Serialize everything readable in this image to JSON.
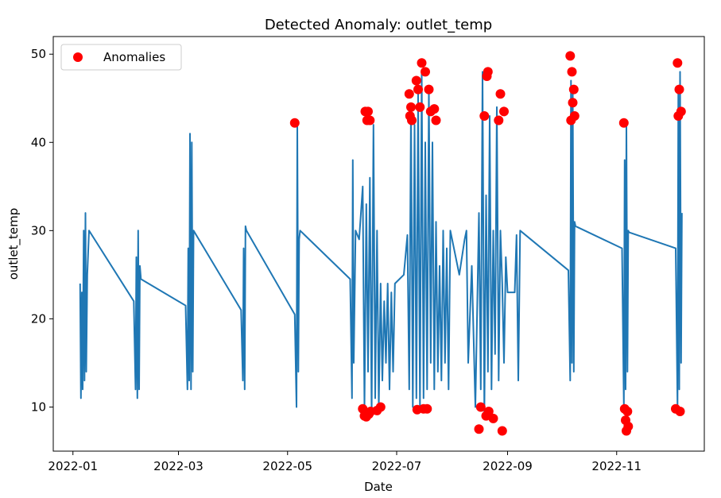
{
  "chart_data": {
    "type": "line",
    "title": "Detected Anomaly: outlet_temp",
    "xlabel": "Date",
    "ylabel": "outlet_temp",
    "x_scale": "date",
    "xlim": [
      "2021-12-21",
      "2022-12-20"
    ],
    "ylim": [
      5,
      52
    ],
    "x_ticks": [
      "2022-01",
      "2022-03",
      "2022-05",
      "2022-07",
      "2022-09",
      "2022-11"
    ],
    "x_tick_dates": [
      "2022-01-01",
      "2022-03-01",
      "2022-05-01",
      "2022-07-01",
      "2022-09-01",
      "2022-11-01"
    ],
    "y_ticks": [
      10,
      20,
      30,
      40,
      50
    ],
    "grid": false,
    "legend": {
      "position": "top-left",
      "entries": [
        "Anomalies"
      ]
    },
    "colors": {
      "line": "#1f77b4",
      "anomaly": "#ff0000"
    },
    "series": [
      {
        "type": "line",
        "x": [
          "2022-01-05",
          "2022-01-05",
          "2022-01-06",
          "2022-01-06",
          "2022-01-07",
          "2022-01-07",
          "2022-01-08",
          "2022-01-08",
          "2022-01-09",
          "2022-01-10",
          "2022-02-04",
          "2022-02-05",
          "2022-02-05",
          "2022-02-06",
          "2022-02-06",
          "2022-02-07",
          "2022-02-07",
          "2022-02-08",
          "2022-03-05",
          "2022-03-06",
          "2022-03-06",
          "2022-03-07",
          "2022-03-07",
          "2022-03-08",
          "2022-03-08",
          "2022-03-09",
          "2022-03-09",
          "2022-04-05",
          "2022-04-06",
          "2022-04-06",
          "2022-04-07",
          "2022-04-07",
          "2022-04-08",
          "2022-05-05",
          "2022-05-06",
          "2022-05-06",
          "2022-05-07",
          "2022-05-07",
          "2022-05-08",
          "2022-06-05",
          "2022-06-06",
          "2022-06-06",
          "2022-06-07",
          "2022-06-08",
          "2022-06-10",
          "2022-06-12",
          "2022-06-13",
          "2022-06-14",
          "2022-06-15",
          "2022-06-16",
          "2022-06-17",
          "2022-06-18",
          "2022-06-19",
          "2022-06-20",
          "2022-06-21",
          "2022-06-22",
          "2022-06-23",
          "2022-06-24",
          "2022-06-25",
          "2022-06-26",
          "2022-06-27",
          "2022-06-28",
          "2022-06-29",
          "2022-06-30",
          "2022-07-05",
          "2022-07-07",
          "2022-07-08",
          "2022-07-09",
          "2022-07-10",
          "2022-07-11",
          "2022-07-12",
          "2022-07-13",
          "2022-07-14",
          "2022-07-15",
          "2022-07-16",
          "2022-07-17",
          "2022-07-18",
          "2022-07-19",
          "2022-07-20",
          "2022-07-21",
          "2022-07-22",
          "2022-07-23",
          "2022-07-24",
          "2022-07-25",
          "2022-07-26",
          "2022-07-27",
          "2022-07-28",
          "2022-07-29",
          "2022-07-30",
          "2022-07-31",
          "2022-08-05",
          "2022-08-08",
          "2022-08-09",
          "2022-08-10",
          "2022-08-12",
          "2022-08-14",
          "2022-08-16",
          "2022-08-17",
          "2022-08-18",
          "2022-08-19",
          "2022-08-20",
          "2022-08-21",
          "2022-08-22",
          "2022-08-23",
          "2022-08-24",
          "2022-08-25",
          "2022-08-26",
          "2022-08-27",
          "2022-08-28",
          "2022-08-29",
          "2022-08-30",
          "2022-08-31",
          "2022-09-01",
          "2022-09-05",
          "2022-09-06",
          "2022-09-07",
          "2022-09-08",
          "2022-10-05",
          "2022-10-06",
          "2022-10-06",
          "2022-10-07",
          "2022-10-07",
          "2022-10-08",
          "2022-10-08",
          "2022-10-09",
          "2022-11-04",
          "2022-11-05",
          "2022-11-05",
          "2022-11-06",
          "2022-11-06",
          "2022-11-07",
          "2022-11-07",
          "2022-11-08",
          "2022-12-04",
          "2022-12-05",
          "2022-12-05",
          "2022-12-06",
          "2022-12-06",
          "2022-12-07",
          "2022-12-07"
        ],
        "y": [
          24,
          11,
          23,
          12,
          30,
          13,
          32,
          14,
          25,
          30,
          22,
          12,
          27,
          11,
          30,
          12,
          26,
          24.5,
          21.5,
          12,
          28,
          13,
          41,
          12,
          40,
          14,
          30,
          21,
          13,
          28,
          12,
          30.5,
          30,
          20.5,
          10,
          42,
          14,
          29,
          30,
          24.5,
          11,
          38,
          15,
          30,
          29,
          35,
          10,
          33,
          14,
          36,
          9,
          42,
          11,
          30,
          10,
          24,
          13,
          22,
          15,
          24,
          12,
          23,
          14,
          24,
          25,
          29.5,
          12,
          44,
          10,
          42,
          11,
          46,
          10,
          48,
          11,
          40,
          12,
          46,
          15,
          40,
          12,
          31,
          14,
          26,
          13,
          30,
          15,
          28,
          12,
          30,
          25,
          29,
          30,
          15,
          26,
          10,
          32,
          12,
          48,
          9,
          34,
          14,
          43,
          12,
          30,
          16,
          44,
          13,
          30,
          24,
          15,
          27,
          23,
          23,
          29.5,
          13,
          30,
          25.5,
          13,
          47,
          15,
          46,
          14,
          31,
          30.5,
          28,
          10,
          38,
          12,
          42,
          14,
          30,
          29.8,
          28,
          10,
          46,
          12,
          48,
          15,
          32
        ]
      },
      {
        "type": "scatter",
        "name": "Anomalies",
        "x": [
          "2022-05-05",
          "2022-06-12",
          "2022-06-13",
          "2022-06-13",
          "2022-06-14",
          "2022-06-14",
          "2022-06-15",
          "2022-06-15",
          "2022-06-16",
          "2022-06-16",
          "2022-06-20",
          "2022-06-22",
          "2022-07-08",
          "2022-07-08",
          "2022-07-09",
          "2022-07-09",
          "2022-07-12",
          "2022-07-12",
          "2022-07-13",
          "2022-07-14",
          "2022-07-15",
          "2022-07-16",
          "2022-07-17",
          "2022-07-18",
          "2022-07-19",
          "2022-07-20",
          "2022-07-22",
          "2022-07-23",
          "2022-08-16",
          "2022-08-17",
          "2022-08-19",
          "2022-08-20",
          "2022-08-20",
          "2022-08-21",
          "2022-08-21",
          "2022-08-24",
          "2022-08-27",
          "2022-08-28",
          "2022-08-29",
          "2022-08-30",
          "2022-10-06",
          "2022-10-06",
          "2022-10-07",
          "2022-10-07",
          "2022-10-08",
          "2022-10-08",
          "2022-11-05",
          "2022-11-05",
          "2022-11-06",
          "2022-11-06",
          "2022-11-07",
          "2022-11-07",
          "2022-12-04",
          "2022-12-05",
          "2022-12-05",
          "2022-12-06",
          "2022-12-06",
          "2022-12-07"
        ],
        "y": [
          42.2,
          9.8,
          9,
          43.5,
          8.9,
          42.5,
          43.5,
          9.2,
          42.5,
          9.5,
          9.6,
          10,
          45.5,
          43,
          44,
          42.5,
          47,
          9.7,
          46,
          44,
          49,
          9.8,
          48,
          9.8,
          46,
          43.5,
          43.8,
          42.5,
          7.5,
          10,
          43,
          9,
          47.5,
          48,
          9.5,
          8.7,
          42.5,
          45.5,
          7.3,
          43.5,
          49.8,
          42.5,
          48,
          44.5,
          46,
          43,
          42.2,
          9.8,
          8.5,
          7.3,
          9.5,
          7.8,
          9.8,
          49,
          43,
          46,
          9.5,
          43.5
        ]
      }
    ]
  }
}
